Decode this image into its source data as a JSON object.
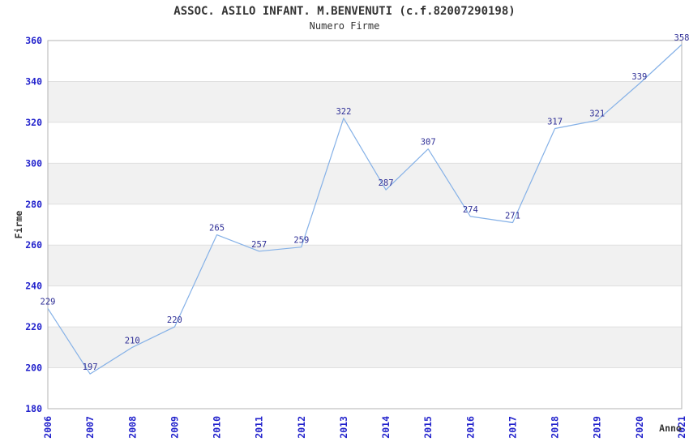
{
  "chart_data": {
    "type": "line",
    "title": "ASSOC. ASILO INFANT. M.BENVENUTI (c.f.82007290198)",
    "subtitle": "Numero Firme",
    "xlabel": "Anno",
    "ylabel": "Firme",
    "categories": [
      "2006",
      "2007",
      "2008",
      "2009",
      "2010",
      "2011",
      "2012",
      "2013",
      "2014",
      "2015",
      "2016",
      "2017",
      "2018",
      "2019",
      "2020",
      "2021"
    ],
    "values": [
      229,
      197,
      210,
      220,
      265,
      257,
      259,
      322,
      287,
      307,
      274,
      271,
      317,
      321,
      339,
      358
    ],
    "ylim": [
      180,
      360
    ],
    "ytick_step": 20,
    "grid": "horizontal-bands",
    "legend": "none",
    "markers": "none",
    "data_labels_visible": true,
    "colors": {
      "line": "#85b1e7",
      "tick_label": "#2222cc",
      "data_label": "#2e2e96",
      "axis_title": "#333333",
      "title_text": "#333333",
      "band_fill": "#f1f1f1",
      "gridline": "#e0e0e0",
      "plot_border": "#b3b3b3",
      "background": "#ffffff"
    }
  }
}
